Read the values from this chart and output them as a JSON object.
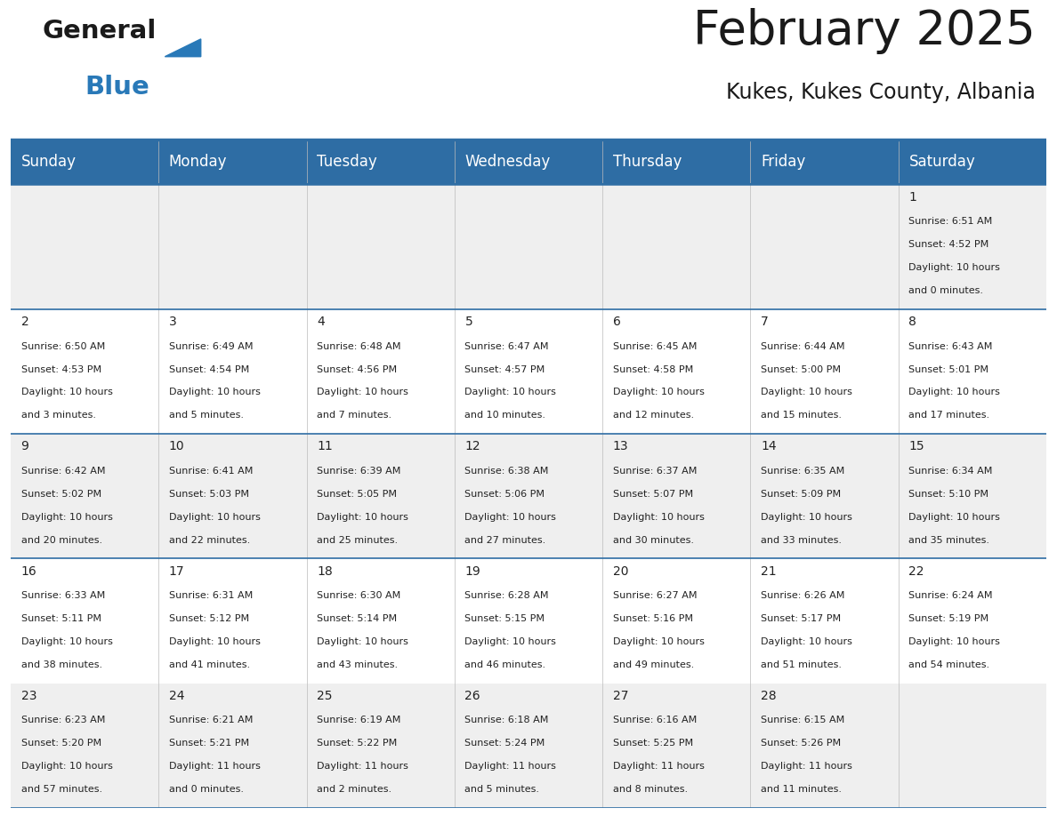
{
  "title": "February 2025",
  "subtitle": "Kukes, Kukes County, Albania",
  "header_bg": "#2E6DA4",
  "header_text_color": "#FFFFFF",
  "cell_bg_odd": "#EFEFEF",
  "cell_bg_even": "#FFFFFF",
  "border_color": "#2E6DA4",
  "day_names": [
    "Sunday",
    "Monday",
    "Tuesday",
    "Wednesday",
    "Thursday",
    "Friday",
    "Saturday"
  ],
  "days_data": [
    {
      "day": 1,
      "col": 6,
      "row": 0,
      "sunrise": "6:51 AM",
      "sunset": "4:52 PM",
      "daylight_line1": "Daylight: 10 hours",
      "daylight_line2": "and 0 minutes."
    },
    {
      "day": 2,
      "col": 0,
      "row": 1,
      "sunrise": "6:50 AM",
      "sunset": "4:53 PM",
      "daylight_line1": "Daylight: 10 hours",
      "daylight_line2": "and 3 minutes."
    },
    {
      "day": 3,
      "col": 1,
      "row": 1,
      "sunrise": "6:49 AM",
      "sunset": "4:54 PM",
      "daylight_line1": "Daylight: 10 hours",
      "daylight_line2": "and 5 minutes."
    },
    {
      "day": 4,
      "col": 2,
      "row": 1,
      "sunrise": "6:48 AM",
      "sunset": "4:56 PM",
      "daylight_line1": "Daylight: 10 hours",
      "daylight_line2": "and 7 minutes."
    },
    {
      "day": 5,
      "col": 3,
      "row": 1,
      "sunrise": "6:47 AM",
      "sunset": "4:57 PM",
      "daylight_line1": "Daylight: 10 hours",
      "daylight_line2": "and 10 minutes."
    },
    {
      "day": 6,
      "col": 4,
      "row": 1,
      "sunrise": "6:45 AM",
      "sunset": "4:58 PM",
      "daylight_line1": "Daylight: 10 hours",
      "daylight_line2": "and 12 minutes."
    },
    {
      "day": 7,
      "col": 5,
      "row": 1,
      "sunrise": "6:44 AM",
      "sunset": "5:00 PM",
      "daylight_line1": "Daylight: 10 hours",
      "daylight_line2": "and 15 minutes."
    },
    {
      "day": 8,
      "col": 6,
      "row": 1,
      "sunrise": "6:43 AM",
      "sunset": "5:01 PM",
      "daylight_line1": "Daylight: 10 hours",
      "daylight_line2": "and 17 minutes."
    },
    {
      "day": 9,
      "col": 0,
      "row": 2,
      "sunrise": "6:42 AM",
      "sunset": "5:02 PM",
      "daylight_line1": "Daylight: 10 hours",
      "daylight_line2": "and 20 minutes."
    },
    {
      "day": 10,
      "col": 1,
      "row": 2,
      "sunrise": "6:41 AM",
      "sunset": "5:03 PM",
      "daylight_line1": "Daylight: 10 hours",
      "daylight_line2": "and 22 minutes."
    },
    {
      "day": 11,
      "col": 2,
      "row": 2,
      "sunrise": "6:39 AM",
      "sunset": "5:05 PM",
      "daylight_line1": "Daylight: 10 hours",
      "daylight_line2": "and 25 minutes."
    },
    {
      "day": 12,
      "col": 3,
      "row": 2,
      "sunrise": "6:38 AM",
      "sunset": "5:06 PM",
      "daylight_line1": "Daylight: 10 hours",
      "daylight_line2": "and 27 minutes."
    },
    {
      "day": 13,
      "col": 4,
      "row": 2,
      "sunrise": "6:37 AM",
      "sunset": "5:07 PM",
      "daylight_line1": "Daylight: 10 hours",
      "daylight_line2": "and 30 minutes."
    },
    {
      "day": 14,
      "col": 5,
      "row": 2,
      "sunrise": "6:35 AM",
      "sunset": "5:09 PM",
      "daylight_line1": "Daylight: 10 hours",
      "daylight_line2": "and 33 minutes."
    },
    {
      "day": 15,
      "col": 6,
      "row": 2,
      "sunrise": "6:34 AM",
      "sunset": "5:10 PM",
      "daylight_line1": "Daylight: 10 hours",
      "daylight_line2": "and 35 minutes."
    },
    {
      "day": 16,
      "col": 0,
      "row": 3,
      "sunrise": "6:33 AM",
      "sunset": "5:11 PM",
      "daylight_line1": "Daylight: 10 hours",
      "daylight_line2": "and 38 minutes."
    },
    {
      "day": 17,
      "col": 1,
      "row": 3,
      "sunrise": "6:31 AM",
      "sunset": "5:12 PM",
      "daylight_line1": "Daylight: 10 hours",
      "daylight_line2": "and 41 minutes."
    },
    {
      "day": 18,
      "col": 2,
      "row": 3,
      "sunrise": "6:30 AM",
      "sunset": "5:14 PM",
      "daylight_line1": "Daylight: 10 hours",
      "daylight_line2": "and 43 minutes."
    },
    {
      "day": 19,
      "col": 3,
      "row": 3,
      "sunrise": "6:28 AM",
      "sunset": "5:15 PM",
      "daylight_line1": "Daylight: 10 hours",
      "daylight_line2": "and 46 minutes."
    },
    {
      "day": 20,
      "col": 4,
      "row": 3,
      "sunrise": "6:27 AM",
      "sunset": "5:16 PM",
      "daylight_line1": "Daylight: 10 hours",
      "daylight_line2": "and 49 minutes."
    },
    {
      "day": 21,
      "col": 5,
      "row": 3,
      "sunrise": "6:26 AM",
      "sunset": "5:17 PM",
      "daylight_line1": "Daylight: 10 hours",
      "daylight_line2": "and 51 minutes."
    },
    {
      "day": 22,
      "col": 6,
      "row": 3,
      "sunrise": "6:24 AM",
      "sunset": "5:19 PM",
      "daylight_line1": "Daylight: 10 hours",
      "daylight_line2": "and 54 minutes."
    },
    {
      "day": 23,
      "col": 0,
      "row": 4,
      "sunrise": "6:23 AM",
      "sunset": "5:20 PM",
      "daylight_line1": "Daylight: 10 hours",
      "daylight_line2": "and 57 minutes."
    },
    {
      "day": 24,
      "col": 1,
      "row": 4,
      "sunrise": "6:21 AM",
      "sunset": "5:21 PM",
      "daylight_line1": "Daylight: 11 hours",
      "daylight_line2": "and 0 minutes."
    },
    {
      "day": 25,
      "col": 2,
      "row": 4,
      "sunrise": "6:19 AM",
      "sunset": "5:22 PM",
      "daylight_line1": "Daylight: 11 hours",
      "daylight_line2": "and 2 minutes."
    },
    {
      "day": 26,
      "col": 3,
      "row": 4,
      "sunrise": "6:18 AM",
      "sunset": "5:24 PM",
      "daylight_line1": "Daylight: 11 hours",
      "daylight_line2": "and 5 minutes."
    },
    {
      "day": 27,
      "col": 4,
      "row": 4,
      "sunrise": "6:16 AM",
      "sunset": "5:25 PM",
      "daylight_line1": "Daylight: 11 hours",
      "daylight_line2": "and 8 minutes."
    },
    {
      "day": 28,
      "col": 5,
      "row": 4,
      "sunrise": "6:15 AM",
      "sunset": "5:26 PM",
      "daylight_line1": "Daylight: 11 hours",
      "daylight_line2": "and 11 minutes."
    }
  ],
  "num_rows": 5,
  "logo_text1": "General",
  "logo_text2": "Blue",
  "logo_color1": "#1a1a1a",
  "logo_color2": "#2979b8",
  "title_color": "#1a1a1a",
  "subtitle_color": "#1a1a1a",
  "title_fontsize": 38,
  "subtitle_fontsize": 17,
  "header_fontsize": 12,
  "day_num_fontsize": 10,
  "cell_text_fontsize": 8
}
